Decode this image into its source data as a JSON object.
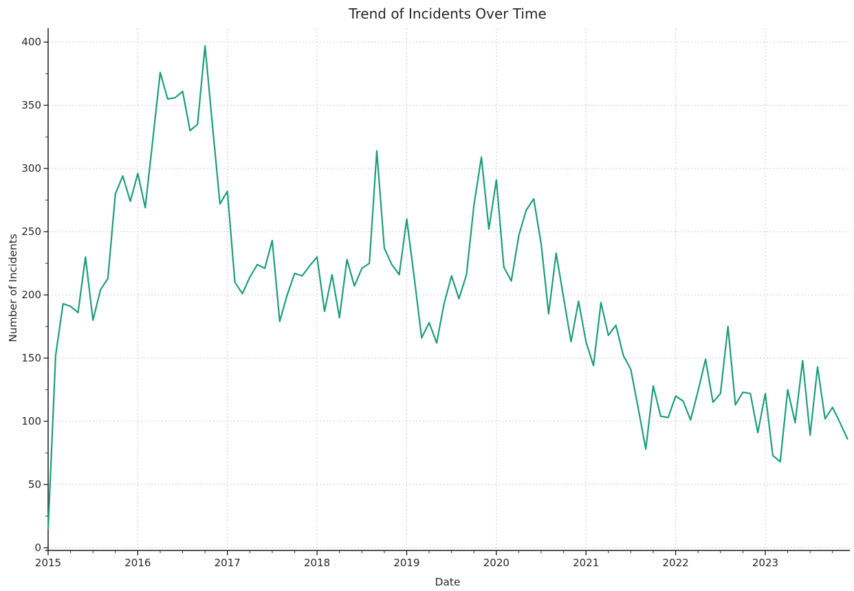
{
  "page": {
    "background": "#ffffff"
  },
  "chart_data": {
    "type": "line",
    "title": "Trend of Incidents Over Time",
    "xlabel": "Date",
    "ylabel": "Number of Incidents",
    "series_name": "Number of Incidents",
    "line_color": "#1b9e77",
    "grid": true,
    "grid_color": "#c9c9c9",
    "legend": false,
    "ylim": [
      0,
      411
    ],
    "yticks": [
      0,
      50,
      100,
      150,
      200,
      250,
      300,
      350,
      400
    ],
    "y_minor_step": 25,
    "x_year_ticks": [
      "2015",
      "2016",
      "2017",
      "2018",
      "2019",
      "2020",
      "2021",
      "2022",
      "2023"
    ],
    "x_minor_months": [
      4,
      7,
      10
    ],
    "x": [
      "2015-01",
      "2015-02",
      "2015-03",
      "2015-04",
      "2015-05",
      "2015-06",
      "2015-07",
      "2015-08",
      "2015-09",
      "2015-10",
      "2015-11",
      "2015-12",
      "2016-01",
      "2016-02",
      "2016-03",
      "2016-04",
      "2016-05",
      "2016-06",
      "2016-07",
      "2016-08",
      "2016-09",
      "2016-10",
      "2016-11",
      "2016-12",
      "2017-01",
      "2017-02",
      "2017-03",
      "2017-04",
      "2017-05",
      "2017-06",
      "2017-07",
      "2017-08",
      "2017-09",
      "2017-10",
      "2017-11",
      "2017-12",
      "2018-01",
      "2018-02",
      "2018-03",
      "2018-04",
      "2018-05",
      "2018-06",
      "2018-07",
      "2018-08",
      "2018-09",
      "2018-10",
      "2018-11",
      "2018-12",
      "2019-01",
      "2019-02",
      "2019-03",
      "2019-04",
      "2019-05",
      "2019-06",
      "2019-07",
      "2019-08",
      "2019-09",
      "2019-10",
      "2019-11",
      "2019-12",
      "2020-01",
      "2020-02",
      "2020-03",
      "2020-04",
      "2020-05",
      "2020-06",
      "2020-07",
      "2020-08",
      "2020-09",
      "2020-10",
      "2020-11",
      "2020-12",
      "2021-01",
      "2021-02",
      "2021-03",
      "2021-04",
      "2021-05",
      "2021-06",
      "2021-07",
      "2021-08",
      "2021-09",
      "2021-10",
      "2021-11",
      "2021-12",
      "2022-01",
      "2022-02",
      "2022-03",
      "2022-04",
      "2022-05",
      "2022-06",
      "2022-07",
      "2022-08",
      "2022-09",
      "2022-10",
      "2022-11",
      "2022-12",
      "2023-01",
      "2023-02",
      "2023-03",
      "2023-04",
      "2023-05",
      "2023-06",
      "2023-07",
      "2023-08",
      "2023-09",
      "2023-10",
      "2023-11",
      "2023-12"
    ],
    "values": [
      15,
      152,
      193,
      191,
      186,
      230,
      180,
      204,
      213,
      280,
      294,
      274,
      296,
      269,
      322,
      376,
      355,
      356,
      361,
      330,
      335,
      397,
      334,
      272,
      282,
      210,
      201,
      214,
      224,
      221,
      243,
      179,
      200,
      217,
      215,
      223,
      230,
      187,
      216,
      182,
      228,
      207,
      221,
      225,
      314,
      237,
      224,
      216,
      260,
      214,
      166,
      178,
      162,
      193,
      215,
      197,
      216,
      271,
      309,
      252,
      291,
      222,
      211,
      247,
      267,
      276,
      240,
      185,
      233,
      198,
      163,
      195,
      163,
      144,
      194,
      168,
      176,
      152,
      141,
      110,
      78,
      128,
      104,
      103,
      120,
      116,
      101,
      124,
      149,
      115,
      122,
      175,
      113,
      123,
      122,
      91,
      122,
      73,
      68,
      125,
      99,
      148,
      89,
      143,
      102,
      111,
      99,
      86
    ]
  }
}
